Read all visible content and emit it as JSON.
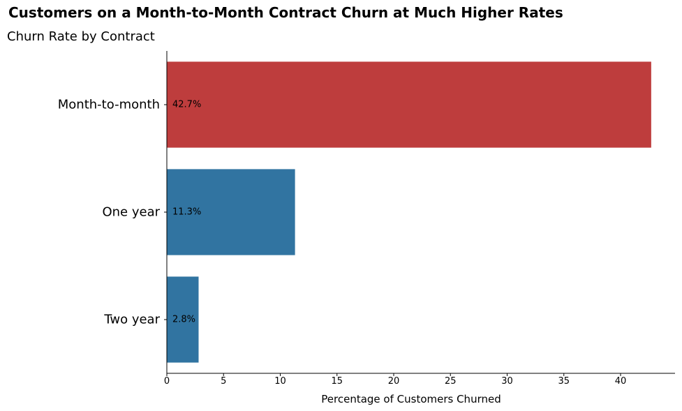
{
  "chart_data": {
    "type": "bar",
    "orientation": "horizontal",
    "suptitle": "Customers on a Month-to-Month Contract Churn at Much Higher Rates",
    "title": "Churn Rate by Contract",
    "xlabel": "Percentage of Customers Churned",
    "ylabel": "",
    "categories": [
      "Month-to-month",
      "One year",
      "Two year"
    ],
    "values": [
      42.7,
      11.3,
      2.8
    ],
    "data_labels": [
      "42.7%",
      "11.3%",
      "2.8%"
    ],
    "bar_colors": [
      "#be3d3d",
      "#3174a1",
      "#3174a1"
    ],
    "xlim": [
      0,
      44.8
    ],
    "xticks": [
      0,
      5,
      10,
      15,
      20,
      25,
      30,
      35,
      40
    ],
    "grid": false,
    "legend": "none"
  }
}
